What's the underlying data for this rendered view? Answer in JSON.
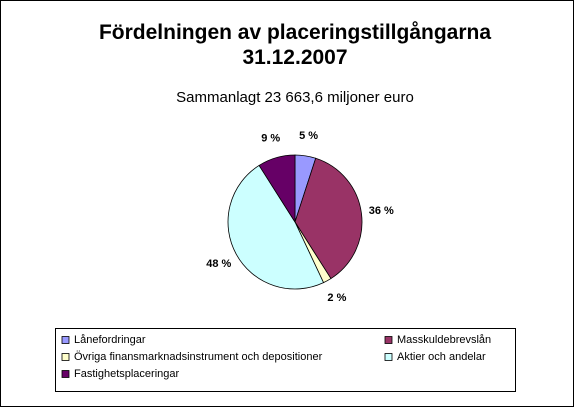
{
  "chart_data": {
    "type": "pie",
    "title": "Fördelningen av placeringstillgångarna 31.12.2007",
    "subtitle": "Sammanlagt 23 663,6 miljoner euro",
    "categories": [
      "Lånefordringar",
      "Masskuldebrevslån",
      "Övriga finansmarknadsinstrument och depositioner",
      "Aktier och andelar",
      "Fastighetsplaceringar"
    ],
    "values": [
      5,
      36,
      2,
      48,
      9
    ],
    "value_labels": [
      "5 %",
      "36 %",
      "2 %",
      "48 %",
      "9 %"
    ],
    "colors": [
      "#9999ff",
      "#993366",
      "#ffffcc",
      "#ccffff",
      "#660066"
    ],
    "legend": "bottom"
  }
}
